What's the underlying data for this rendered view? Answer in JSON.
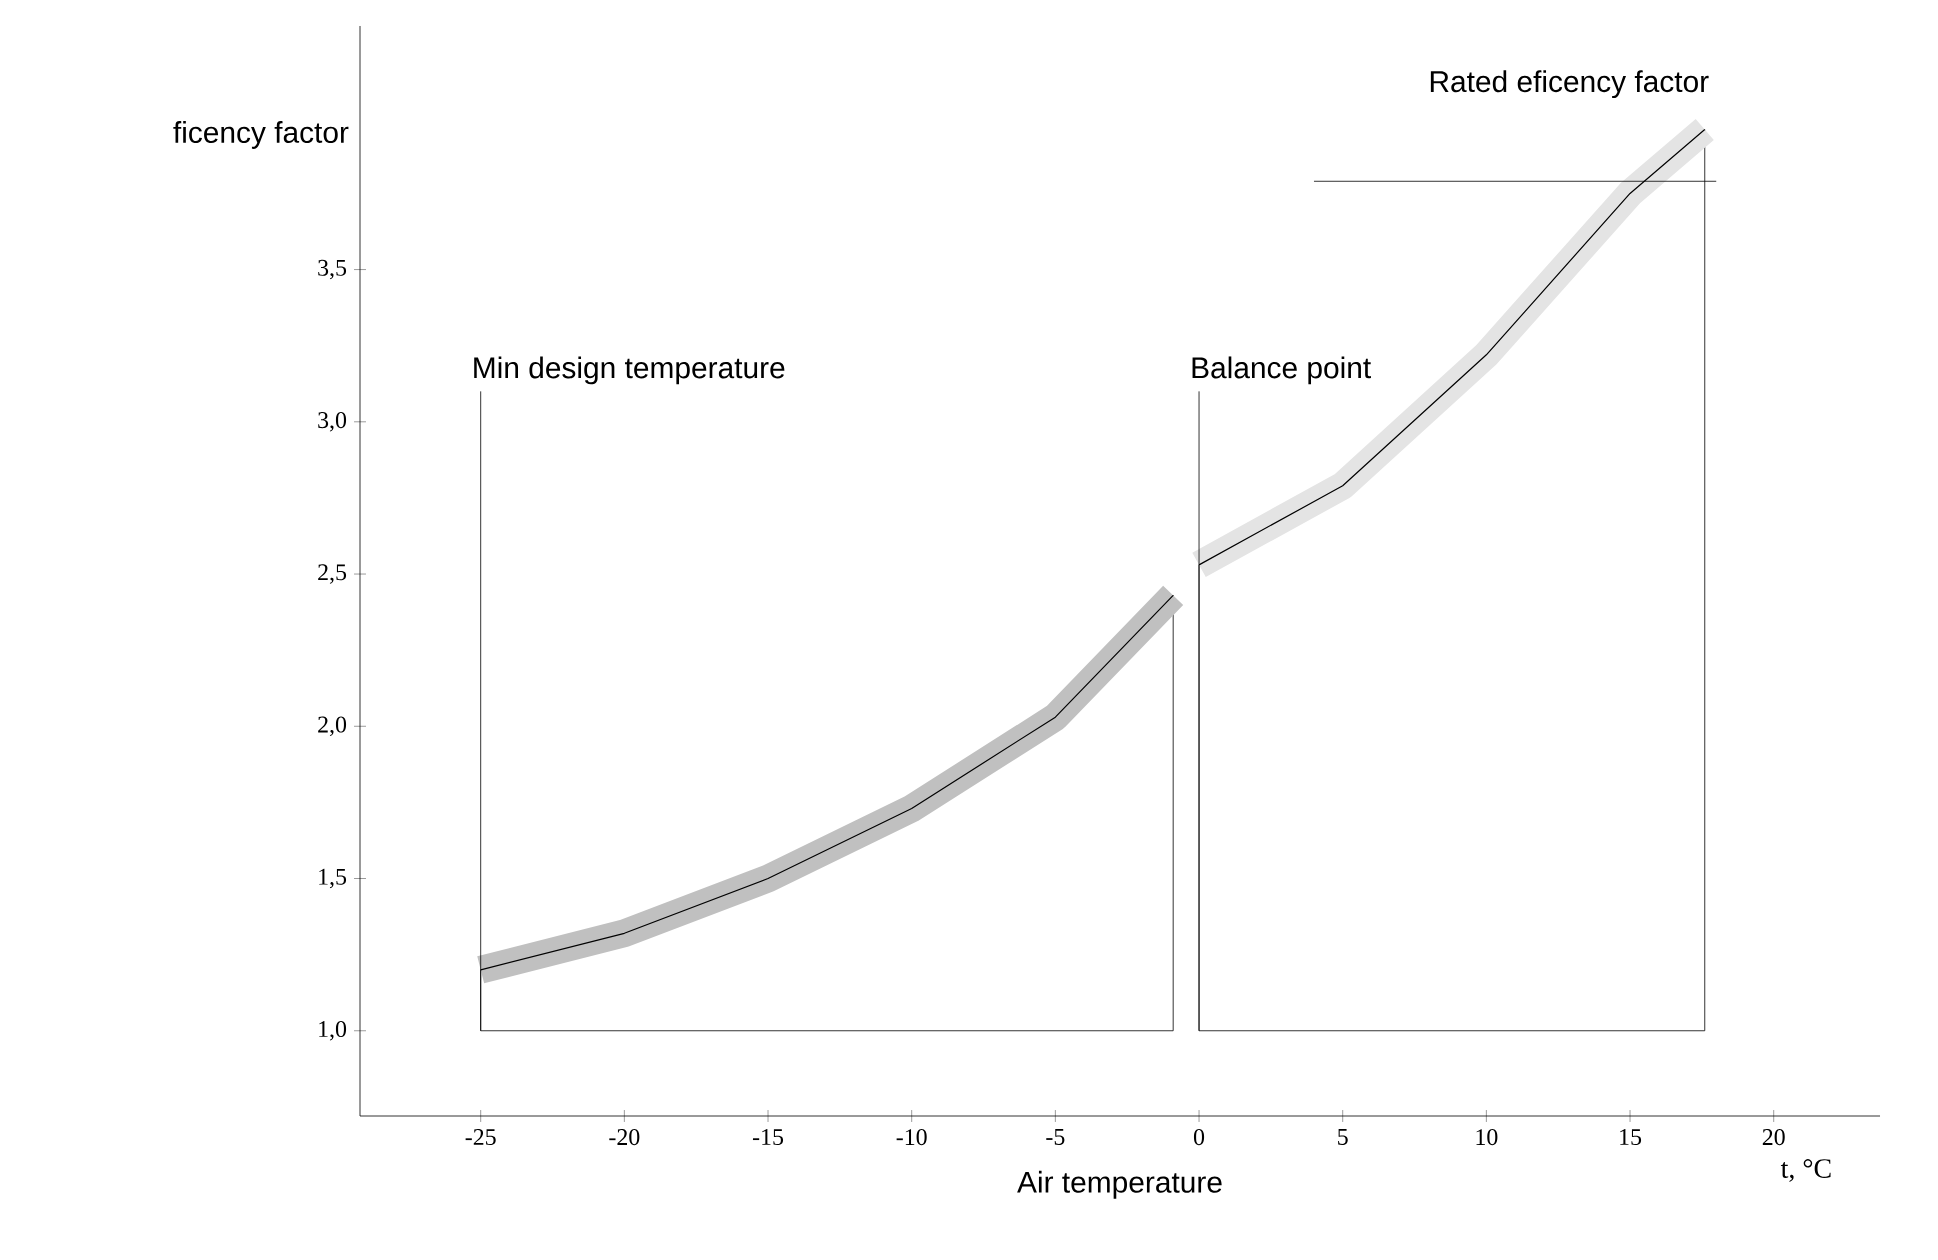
{
  "chart_data": {
    "type": "area",
    "xlabel": "Air temperature",
    "ylabel": "ficency factor",
    "xlim": [
      -29.2,
      23.7
    ],
    "ylim": [
      0.72,
      4.3
    ],
    "xticks": [
      -25,
      -20,
      -15,
      -10,
      -5,
      0,
      5,
      10,
      15,
      20
    ],
    "yticks": [
      {
        "value": 1.0,
        "label": "1,0"
      },
      {
        "value": 1.5,
        "label": "1,5"
      },
      {
        "value": 2.0,
        "label": "2,0"
      },
      {
        "value": 2.5,
        "label": "2,5"
      },
      {
        "value": 3.0,
        "label": "3,0"
      },
      {
        "value": 3.5,
        "label": "3,5"
      }
    ],
    "series": [
      {
        "color": "#c0c0c0",
        "x": [
          -25,
          -20,
          -15,
          -10,
          -5,
          -0.9
        ],
        "values": [
          1.2,
          1.32,
          1.5,
          1.73,
          2.03,
          2.43
        ]
      },
      {
        "color": "#e4e4e4",
        "x": [
          0,
          5,
          10,
          15,
          17.6
        ],
        "values": [
          2.53,
          2.79,
          3.22,
          3.75,
          3.96
        ]
      }
    ],
    "ref_lines": [
      {
        "axis": "x",
        "value": -25,
        "label": "Min design temperature"
      },
      {
        "axis": "x",
        "value": 0,
        "label": "Balance point"
      },
      {
        "axis": "y",
        "value": 3.79,
        "label": "Rated eficency factor"
      }
    ],
    "annotations": [
      "t, °C"
    ]
  }
}
